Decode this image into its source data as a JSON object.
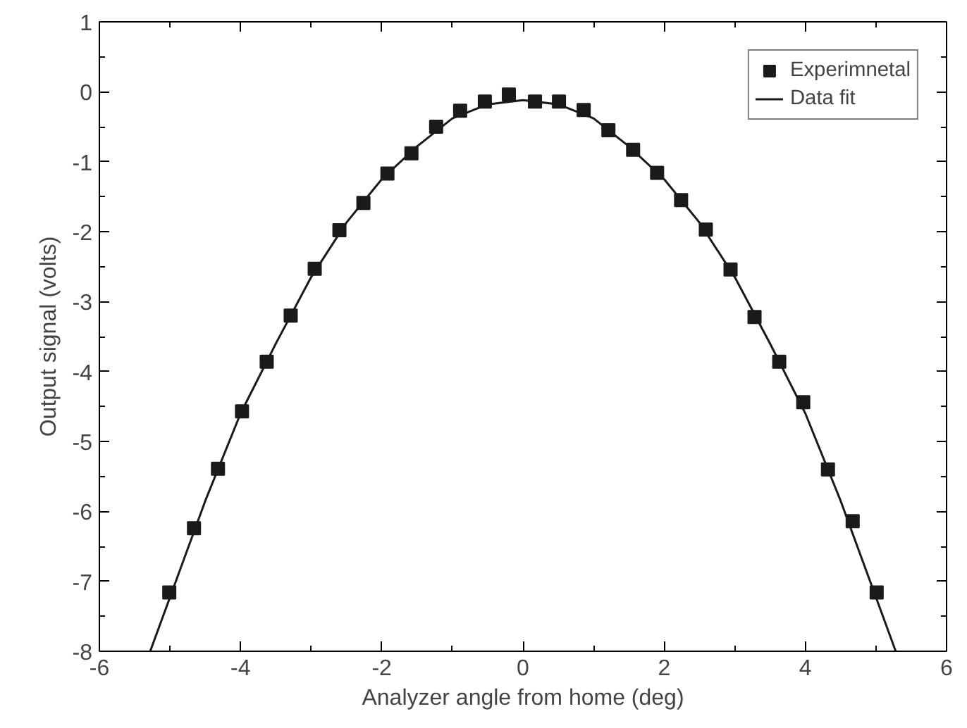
{
  "chart_data": {
    "type": "scatter",
    "xlabel": "Analyzer angle from home (deg)",
    "ylabel": "Output signal (volts)",
    "xlim": [
      -6,
      6
    ],
    "ylim": [
      -8,
      1
    ],
    "xticks": [
      -6,
      -4,
      -2,
      0,
      2,
      4,
      6
    ],
    "yticks": [
      -8,
      -7,
      -6,
      -5,
      -4,
      -3,
      -2,
      -1,
      0,
      1
    ],
    "grid": false,
    "legend": "top right",
    "series": [
      {
        "name": "Experimnetal",
        "marker": "square",
        "color": "#1a1a1a",
        "x": [
          -5.01,
          -4.66,
          -4.32,
          -3.98,
          -3.63,
          -3.29,
          -2.95,
          -2.6,
          -2.26,
          -1.92,
          -1.58,
          -1.23,
          -0.89,
          -0.54,
          -0.2,
          0.17,
          0.51,
          0.86,
          1.21,
          1.56,
          1.9,
          2.24,
          2.59,
          2.94,
          3.28,
          3.63,
          3.97,
          4.32,
          4.67,
          5.01
        ],
        "values": [
          -7.16,
          -6.24,
          -5.39,
          -4.57,
          -3.86,
          -3.2,
          -2.53,
          -1.98,
          -1.59,
          -1.17,
          -0.88,
          -0.5,
          -0.27,
          -0.14,
          -0.04,
          -0.14,
          -0.14,
          -0.26,
          -0.55,
          -0.83,
          -1.16,
          -1.55,
          -1.97,
          -2.54,
          -3.22,
          -3.86,
          -4.44,
          -5.4,
          -6.14,
          -7.16
        ]
      },
      {
        "name": "Data fit",
        "type": "line",
        "line_style": "solid",
        "color": "#1a1a1a",
        "x": [
          -5.28,
          -4.5,
          -4,
          -3.5,
          -3,
          -2.5,
          -2,
          -1.5,
          -1,
          -0.5,
          0,
          0.5,
          1,
          1.5,
          2,
          2.5,
          3,
          3.5,
          4,
          4.5,
          5.28
        ],
        "values": [
          -8.0,
          -5.85,
          -4.6,
          -3.6,
          -2.65,
          -1.87,
          -1.25,
          -0.78,
          -0.38,
          -0.18,
          -0.12,
          -0.18,
          -0.38,
          -0.78,
          -1.25,
          -1.87,
          -2.65,
          -3.6,
          -4.6,
          -5.85,
          -8.0
        ]
      }
    ]
  }
}
